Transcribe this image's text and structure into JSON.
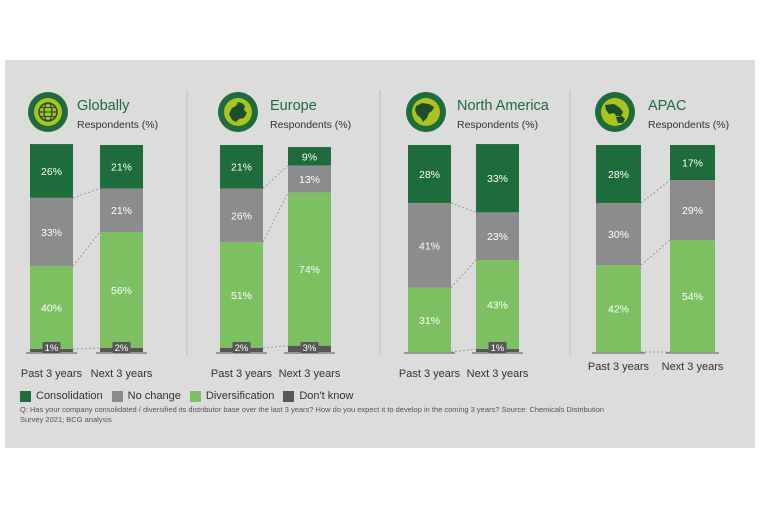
{
  "colors": {
    "consolidation": "#1e6b3c",
    "no_change": "#8c8c8c",
    "diversification": "#7dc062",
    "dont_know": "#575757",
    "background": "#dcdcdc",
    "icon_ring": "#1e6b3c",
    "icon_fill": "#a9c51d"
  },
  "legend": [
    {
      "label": "Consolidation",
      "color": "#1e6b3c"
    },
    {
      "label": "No change",
      "color": "#8c8c8c"
    },
    {
      "label": "Diversification",
      "color": "#7dc062"
    },
    {
      "label": "Don't know",
      "color": "#575757"
    }
  ],
  "footnote": "Q: Has your company consolidated / diversified its distributor base over the last 3 years? How do you expect it to develop in the coming 3 years? Source: Chemicals Distribution Survey 2021; BCG analysis",
  "chart_data": [
    {
      "type": "bar",
      "stacked": true,
      "title": "Globally",
      "subtitle": "Respondents (%)",
      "icon": "globe-icon",
      "categories": [
        "Past 3 years",
        "Next 3 years"
      ],
      "series": [
        {
          "name": "Consolidation",
          "values": [
            26,
            21
          ],
          "labels": [
            "26%",
            "21%"
          ]
        },
        {
          "name": "No change",
          "values": [
            33,
            21
          ],
          "labels": [
            "33%",
            "21%"
          ]
        },
        {
          "name": "Diversification",
          "values": [
            40,
            56
          ],
          "labels": [
            "40%",
            "56%"
          ]
        },
        {
          "name": "Don't know",
          "values": [
            1,
            2
          ],
          "labels": [
            "1%",
            "2%"
          ]
        }
      ]
    },
    {
      "type": "bar",
      "stacked": true,
      "title": "Europe",
      "subtitle": "Respondents (%)",
      "icon": "europe-map-icon",
      "categories": [
        "Past 3 years",
        "Next 3 years"
      ],
      "series": [
        {
          "name": "Consolidation",
          "values": [
            21,
            9
          ],
          "labels": [
            "21%",
            "9%"
          ]
        },
        {
          "name": "No change",
          "values": [
            26,
            13
          ],
          "labels": [
            "26%",
            "13%"
          ]
        },
        {
          "name": "Diversification",
          "values": [
            51,
            74
          ],
          "labels": [
            "51%",
            "74%"
          ]
        },
        {
          "name": "Don't know",
          "values": [
            2,
            3
          ],
          "labels": [
            "2%",
            "3%"
          ]
        }
      ]
    },
    {
      "type": "bar",
      "stacked": true,
      "title": "North America",
      "subtitle": "Respondents (%)",
      "icon": "north-america-map-icon",
      "categories": [
        "Past 3 years",
        "Next 3 years"
      ],
      "series": [
        {
          "name": "Consolidation",
          "values": [
            28,
            33
          ],
          "labels": [
            "28%",
            "33%"
          ]
        },
        {
          "name": "No change",
          "values": [
            41,
            23
          ],
          "labels": [
            "41%",
            "23%"
          ]
        },
        {
          "name": "Diversification",
          "values": [
            31,
            43
          ],
          "labels": [
            "31%",
            "43%"
          ]
        },
        {
          "name": "Don't know",
          "values": [
            0,
            1
          ],
          "labels": [
            "",
            "1%"
          ]
        }
      ]
    },
    {
      "type": "bar",
      "stacked": true,
      "title": "APAC",
      "subtitle": "Respondents (%)",
      "icon": "apac-map-icon",
      "categories": [
        "Past 3 years",
        "Next 3 years"
      ],
      "series": [
        {
          "name": "Consolidation",
          "values": [
            28,
            17
          ],
          "labels": [
            "28%",
            "17%"
          ]
        },
        {
          "name": "No change",
          "values": [
            30,
            29
          ],
          "labels": [
            "30%",
            "29%"
          ]
        },
        {
          "name": "Diversification",
          "values": [
            42,
            54
          ],
          "labels": [
            "42%",
            "54%"
          ]
        },
        {
          "name": "Don't know",
          "values": [
            0,
            0
          ],
          "labels": [
            "",
            ""
          ]
        }
      ]
    }
  ]
}
